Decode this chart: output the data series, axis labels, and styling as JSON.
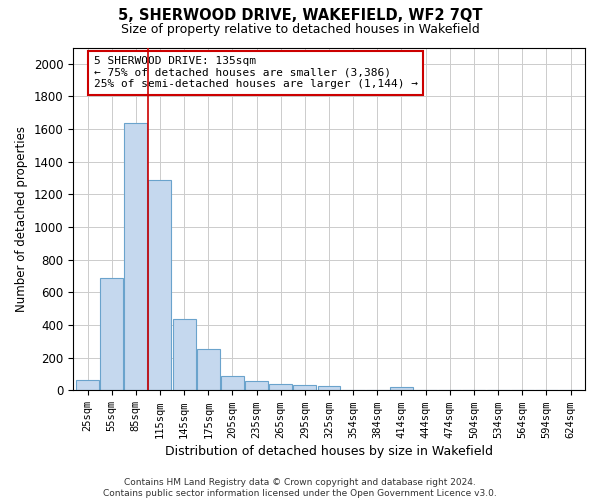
{
  "title": "5, SHERWOOD DRIVE, WAKEFIELD, WF2 7QT",
  "subtitle": "Size of property relative to detached houses in Wakefield",
  "xlabel": "Distribution of detached houses by size in Wakefield",
  "ylabel": "Number of detached properties",
  "bar_color": "#c5d8ee",
  "bar_edge_color": "#6aa3cc",
  "categories": [
    "25sqm",
    "55sqm",
    "85sqm",
    "115sqm",
    "145sqm",
    "175sqm",
    "205sqm",
    "235sqm",
    "265sqm",
    "295sqm",
    "325sqm",
    "354sqm",
    "384sqm",
    "414sqm",
    "444sqm",
    "474sqm",
    "504sqm",
    "534sqm",
    "564sqm",
    "594sqm",
    "624sqm"
  ],
  "values": [
    65,
    690,
    1640,
    1290,
    435,
    255,
    90,
    55,
    40,
    30,
    25,
    0,
    0,
    20,
    0,
    0,
    0,
    0,
    0,
    0,
    0
  ],
  "ylim": [
    0,
    2100
  ],
  "yticks": [
    0,
    200,
    400,
    600,
    800,
    1000,
    1200,
    1400,
    1600,
    1800,
    2000
  ],
  "property_line_x": 2.5,
  "annotation_text": "5 SHERWOOD DRIVE: 135sqm\n← 75% of detached houses are smaller (3,386)\n25% of semi-detached houses are larger (1,144) →",
  "annotation_box_color": "#ffffff",
  "annotation_box_edge_color": "#cc0000",
  "footer_line1": "Contains HM Land Registry data © Crown copyright and database right 2024.",
  "footer_line2": "Contains public sector information licensed under the Open Government Licence v3.0.",
  "background_color": "#ffffff",
  "grid_color": "#cccccc"
}
